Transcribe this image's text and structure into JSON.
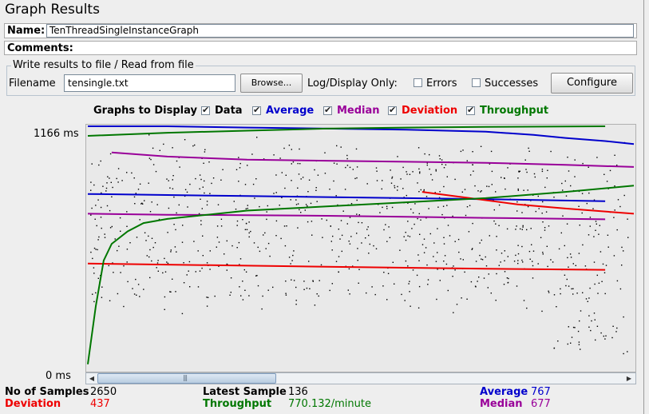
{
  "window": {
    "title": "Graph Results"
  },
  "name": {
    "label": "Name:",
    "value": "TenThreadSingleInstanceGraph"
  },
  "comments": {
    "label": "Comments:",
    "value": ""
  },
  "file_panel": {
    "title": "Write results to file / Read from file",
    "filename_label": "Filename",
    "filename_value": "tensingle.txt",
    "browse_label": "Browse...",
    "logdisplay_label": "Log/Display Only:",
    "errors_label": "Errors",
    "errors_checked": false,
    "successes_label": "Successes",
    "successes_checked": false,
    "configure_label": "Configure"
  },
  "graphs_to_display": {
    "label": "Graphs to Display",
    "items": [
      {
        "label": "Data",
        "checked": true,
        "color": "#000000"
      },
      {
        "label": "Average",
        "checked": true,
        "color": "#0000cc"
      },
      {
        "label": "Median",
        "checked": true,
        "color": "#990099"
      },
      {
        "label": "Deviation",
        "checked": true,
        "color": "#ee0000"
      },
      {
        "label": "Throughput",
        "checked": true,
        "color": "#007700"
      }
    ]
  },
  "chart": {
    "y_max_label": "1166 ms",
    "y_min_label": "0 ms"
  },
  "chart_data": {
    "type": "scatter",
    "ylim": [
      0,
      1166
    ],
    "tick_labels": [
      "1166 ms",
      "0 ms"
    ],
    "xlabel": "",
    "ylabel": "",
    "series": [
      {
        "name": "Average",
        "color": "#0000cc",
        "x": [
          0,
          100,
          200,
          300,
          400,
          500,
          560,
          600,
          650,
          686
        ],
        "y": [
          1166,
          1166,
          1160,
          1155,
          1150,
          1140,
          1125,
          1110,
          1095,
          1080
        ]
      },
      {
        "name": "Average",
        "color": "#0000cc",
        "x": [
          0,
          100,
          200,
          300,
          400,
          500,
          650
        ],
        "y": [
          840,
          835,
          830,
          825,
          820,
          815,
          805
        ]
      },
      {
        "name": "Median",
        "color": "#990099",
        "x": [
          30,
          100,
          200,
          300,
          400,
          500,
          600,
          686
        ],
        "y": [
          1040,
          1020,
          1005,
          1000,
          995,
          990,
          980,
          970
        ]
      },
      {
        "name": "Median",
        "color": "#990099",
        "x": [
          0,
          100,
          200,
          300,
          400,
          500,
          650
        ],
        "y": [
          745,
          740,
          738,
          735,
          730,
          725,
          718
        ]
      },
      {
        "name": "Deviation",
        "color": "#ee0000",
        "x": [
          0,
          100,
          200,
          300,
          400,
          500,
          650
        ],
        "y": [
          505,
          500,
          495,
          490,
          485,
          480,
          475
        ]
      },
      {
        "name": "Deviation",
        "color": "#ee0000",
        "x": [
          420,
          480,
          540,
          600,
          686
        ],
        "y": [
          850,
          820,
          790,
          770,
          745
        ]
      },
      {
        "name": "Throughput",
        "color": "#007700",
        "x": [
          0,
          100,
          200,
          300,
          400,
          500,
          650
        ],
        "y": [
          1120,
          1135,
          1145,
          1155,
          1160,
          1163,
          1166
        ]
      },
      {
        "name": "Throughput",
        "color": "#007700",
        "x": [
          0,
          10,
          20,
          30,
          50,
          70,
          100,
          150,
          200,
          250,
          300,
          400,
          500,
          600,
          686
        ],
        "y": [
          20,
          300,
          520,
          600,
          660,
          700,
          720,
          740,
          760,
          770,
          780,
          800,
          820,
          850,
          880
        ]
      }
    ]
  },
  "scrollbar": {
    "left_arrow": "◀",
    "right_arrow": "▶",
    "grip": "|||"
  },
  "stats": {
    "samples_label": "No of Samples",
    "samples_value": "2650",
    "latest_label": "Latest Sample",
    "latest_value": "136",
    "average_label": "Average",
    "average_value": "767",
    "average_color": "#0000cc",
    "deviation_label": "Deviation",
    "deviation_value": "437",
    "deviation_color": "#ee0000",
    "throughput_label": "Throughput",
    "throughput_value": "770.132/minute",
    "throughput_color": "#007700",
    "median_label": "Median",
    "median_value": "677",
    "median_color": "#990099"
  }
}
